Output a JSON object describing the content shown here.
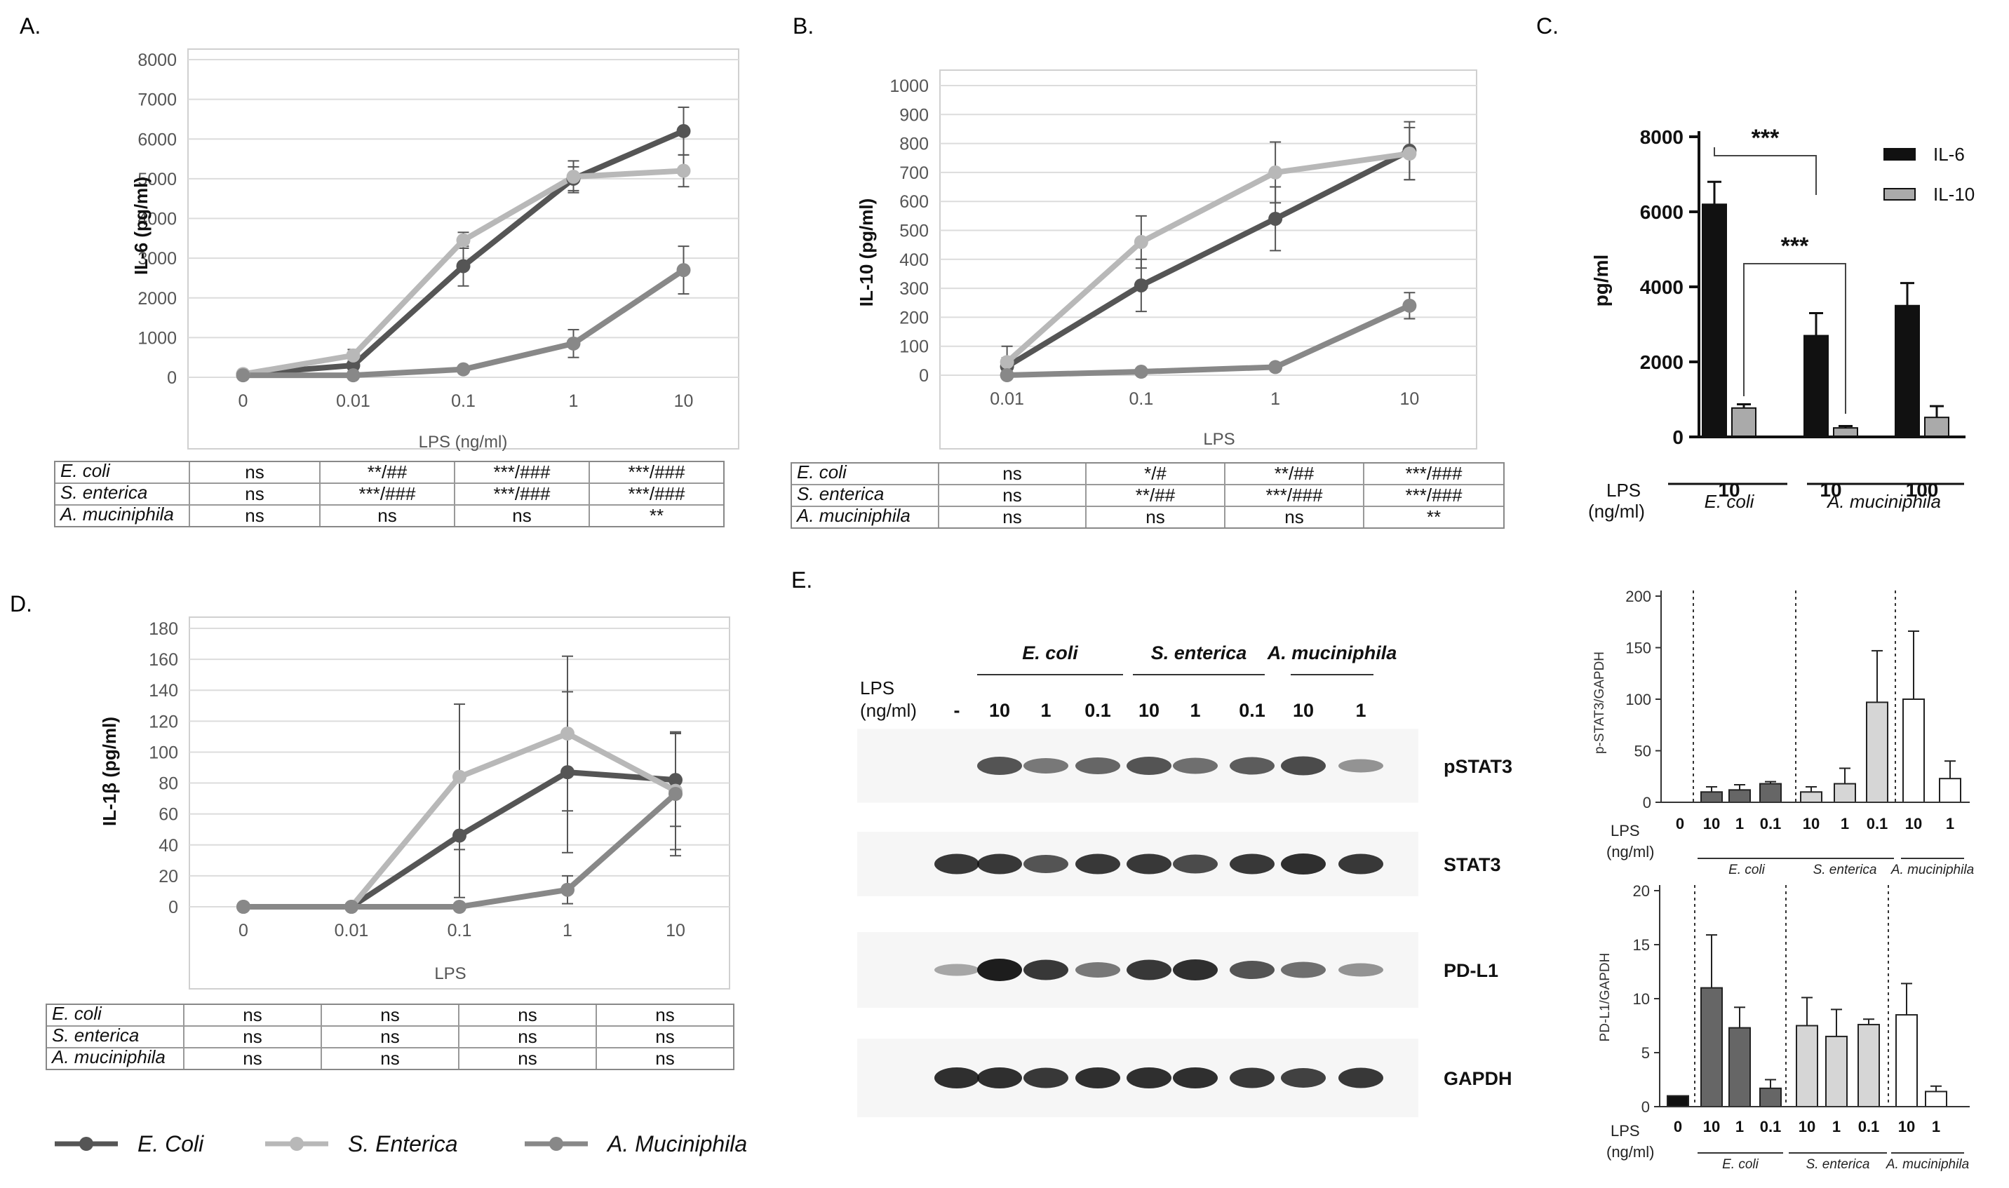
{
  "panels": {
    "A": {
      "letter": "A."
    },
    "B": {
      "letter": "B."
    },
    "C": {
      "letter": "C."
    },
    "D": {
      "letter": "D."
    },
    "E": {
      "letter": "E."
    }
  },
  "legend": {
    "items": [
      {
        "name": "E. Coli",
        "color": "#555555"
      },
      {
        "name": "S. Enterica",
        "color": "#b8b8b8"
      },
      {
        "name": "A. Muciniphila",
        "color": "#888888"
      }
    ]
  },
  "tables": {
    "A": {
      "rows": [
        {
          "label": "E. coli",
          "cells": [
            "ns",
            "**/##",
            "***/###",
            "***/###"
          ]
        },
        {
          "label": "S. enterica",
          "cells": [
            "ns",
            "***/###",
            "***/###",
            "***/###"
          ]
        },
        {
          "label": "A. muciniphila",
          "cells": [
            "ns",
            "ns",
            "ns",
            "**"
          ]
        }
      ]
    },
    "B": {
      "rows": [
        {
          "label": "E. coli",
          "cells": [
            "ns",
            "*/#",
            "**/##",
            "***/###"
          ]
        },
        {
          "label": "S. enterica",
          "cells": [
            "ns",
            "**/##",
            "***/###",
            "***/###"
          ]
        },
        {
          "label": "A. muciniphila",
          "cells": [
            "ns",
            "ns",
            "ns",
            "**"
          ]
        }
      ]
    },
    "D": {
      "rows": [
        {
          "label": "E. coli",
          "cells": [
            "ns",
            "ns",
            "ns",
            "ns"
          ]
        },
        {
          "label": "S. enterica",
          "cells": [
            "ns",
            "ns",
            "ns",
            "ns"
          ]
        },
        {
          "label": "A. muciniphila",
          "cells": [
            "ns",
            "ns",
            "ns",
            "ns"
          ]
        }
      ]
    }
  },
  "blot": {
    "group_labels": [
      "E. coli",
      "S. enterica",
      "A. muciniphila"
    ],
    "lps_label_line1": "LPS",
    "lps_label_line2": "(ng/ml)",
    "lane_labels": [
      "-",
      "10",
      "1",
      "0.1",
      "10",
      "1",
      "0.1",
      "10",
      "1"
    ],
    "rows": [
      {
        "label": "pSTAT3",
        "intensities": [
          0.02,
          0.7,
          0.5,
          0.6,
          0.7,
          0.55,
          0.65,
          0.75,
          0.35
        ]
      },
      {
        "label": "STAT3",
        "intensities": [
          0.85,
          0.85,
          0.7,
          0.85,
          0.85,
          0.75,
          0.85,
          0.9,
          0.85
        ]
      },
      {
        "label": "PD-L1",
        "intensities": [
          0.25,
          1.0,
          0.85,
          0.5,
          0.85,
          0.9,
          0.7,
          0.55,
          0.35
        ]
      },
      {
        "label": "GAPDH",
        "intensities": [
          0.9,
          0.9,
          0.85,
          0.9,
          0.9,
          0.9,
          0.85,
          0.8,
          0.85
        ]
      }
    ]
  },
  "chart_data": [
    {
      "id": "A",
      "type": "line",
      "title": "",
      "xlabel": "LPS (ng/ml)",
      "ylabel": "IL-6 (pg/ml)",
      "categories": [
        "0",
        "0.01",
        "0.1",
        "1",
        "10"
      ],
      "ylim": [
        0,
        8000
      ],
      "yticks": [
        0,
        1000,
        2000,
        3000,
        4000,
        5000,
        6000,
        7000,
        8000
      ],
      "grid": true,
      "series": [
        {
          "name": "E. Coli",
          "values": [
            80,
            300,
            2800,
            5000,
            6200
          ],
          "errors": [
            50,
            150,
            500,
            300,
            600
          ]
        },
        {
          "name": "S. Enterica",
          "values": [
            80,
            550,
            3450,
            5050,
            5200
          ],
          "errors": [
            50,
            150,
            200,
            400,
            400
          ]
        },
        {
          "name": "A. Muciniphila",
          "values": [
            50,
            50,
            200,
            850,
            2700
          ],
          "errors": [
            30,
            30,
            50,
            350,
            600
          ]
        }
      ]
    },
    {
      "id": "B",
      "type": "line",
      "title": "",
      "xlabel": "LPS",
      "ylabel": "IL-10 (pg/ml)",
      "categories": [
        "0.01",
        "0.1",
        "1",
        "10"
      ],
      "ylim": [
        0,
        1000
      ],
      "yticks": [
        0,
        100,
        200,
        300,
        400,
        500,
        600,
        700,
        800,
        900,
        1000
      ],
      "grid": true,
      "series": [
        {
          "name": "E. Coli",
          "values": [
            30,
            310,
            540,
            775
          ],
          "errors": [
            30,
            90,
            110,
            100
          ]
        },
        {
          "name": "S. Enterica",
          "values": [
            45,
            460,
            700,
            765
          ],
          "errors": [
            55,
            90,
            105,
            90
          ]
        },
        {
          "name": "A. Muciniphila",
          "values": [
            0,
            12,
            28,
            240
          ],
          "errors": [
            0,
            0,
            0,
            45
          ]
        }
      ]
    },
    {
      "id": "C",
      "type": "bar",
      "title": "",
      "ylabel": "pg/ml",
      "xlabel_line1": "LPS",
      "xlabel_line2": "(ng/ml)",
      "categories": [
        "10",
        "10",
        "100"
      ],
      "groups": [
        "E. coli",
        "A. muciniphila"
      ],
      "ylim": [
        0,
        8000
      ],
      "yticks": [
        0,
        2000,
        4000,
        6000,
        8000
      ],
      "grid": false,
      "legend_position": "top-right",
      "series": [
        {
          "name": "IL-6",
          "color": "#111111",
          "values": [
            6200,
            2700,
            3500
          ],
          "errors": [
            600,
            600,
            600
          ]
        },
        {
          "name": "IL-10",
          "color": "#aaaaaa",
          "values": [
            770,
            240,
            520
          ],
          "errors": [
            100,
            50,
            300
          ]
        }
      ],
      "annotations": [
        {
          "text": "***",
          "between": "IL-6 E. coli 10 vs IL-6 A. muciniphila 10"
        },
        {
          "text": "***",
          "between": "IL-10 E. coli 10 vs IL-10 A. muciniphila 10"
        }
      ]
    },
    {
      "id": "D",
      "type": "line",
      "title": "",
      "xlabel": "LPS",
      "ylabel": "IL-1β (pg/ml)",
      "categories": [
        "0",
        "0.01",
        "0.1",
        "1",
        "10"
      ],
      "ylim": [
        0,
        180
      ],
      "yticks": [
        0,
        20,
        40,
        60,
        80,
        100,
        120,
        140,
        160,
        180
      ],
      "grid": true,
      "series": [
        {
          "name": "E. Coli",
          "values": [
            0,
            0,
            46,
            87,
            82
          ],
          "errors": [
            0,
            0,
            40,
            52,
            30
          ]
        },
        {
          "name": "S. Enterica",
          "values": [
            0,
            0,
            84,
            112,
            75
          ],
          "errors": [
            0,
            0,
            47,
            50,
            38
          ]
        },
        {
          "name": "A. Muciniphila",
          "values": [
            0,
            0,
            0,
            11,
            73
          ],
          "errors": [
            0,
            0,
            0,
            9,
            40
          ]
        }
      ]
    },
    {
      "id": "E1",
      "type": "bar",
      "ylabel": "p-STAT3/GAPDH",
      "xlabel_line1": "LPS",
      "xlabel_line2": "(ng/ml)",
      "categories": [
        "0",
        "10",
        "1",
        "0.1",
        "10",
        "1",
        "0.1",
        "10",
        "1"
      ],
      "groups": [
        "E. coli",
        "S. enterica",
        "A. muciniphila"
      ],
      "ylim": [
        0,
        200
      ],
      "yticks": [
        0,
        50,
        100,
        150,
        200
      ],
      "values": [
        0,
        10,
        12,
        18,
        10,
        18,
        97,
        100,
        23
      ],
      "errors": [
        0,
        5,
        5,
        2,
        5,
        15,
        50,
        66,
        17
      ],
      "colors": [
        "#111111",
        "#666666",
        "#666666",
        "#666666",
        "#d6d6d6",
        "#d6d6d6",
        "#d6d6d6",
        "#ffffff",
        "#ffffff"
      ]
    },
    {
      "id": "E2",
      "type": "bar",
      "ylabel": "PD-L1/GAPDH",
      "xlabel_line1": "LPS",
      "xlabel_line2": "(ng/ml)",
      "categories": [
        "0",
        "10",
        "1",
        "0.1",
        "10",
        "1",
        "0.1",
        "10",
        "1"
      ],
      "groups": [
        "E. coli",
        "S. enterica",
        "A. muciniphila"
      ],
      "ylim": [
        0,
        20
      ],
      "yticks": [
        0,
        5,
        10,
        15,
        20
      ],
      "values": [
        1,
        11,
        7.3,
        1.7,
        7.5,
        6.5,
        7.6,
        8.5,
        1.4
      ],
      "errors": [
        0,
        4.9,
        1.9,
        0.8,
        2.6,
        2.5,
        0.5,
        2.9,
        0.5
      ],
      "colors": [
        "#111111",
        "#666666",
        "#666666",
        "#666666",
        "#d6d6d6",
        "#d6d6d6",
        "#d6d6d6",
        "#ffffff",
        "#ffffff"
      ]
    }
  ]
}
